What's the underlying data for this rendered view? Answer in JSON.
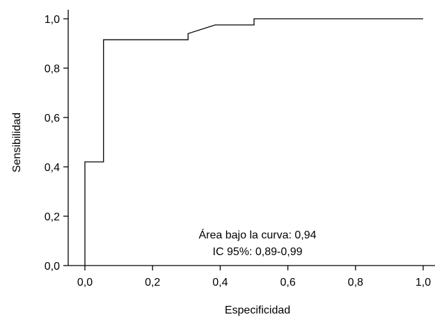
{
  "chart_data": {
    "type": "line",
    "xlabel": "Especificidad",
    "ylabel": "Sensibilidad",
    "xlim": [
      0,
      1
    ],
    "ylim": [
      0,
      1
    ],
    "x_ticks": [
      "0,0",
      "0,2",
      "0,4",
      "0,6",
      "0,8",
      "1,0"
    ],
    "y_ticks": [
      "0,0",
      "0,2",
      "0,4",
      "0,6",
      "0,8",
      "1,0"
    ],
    "grid": false,
    "series": [
      {
        "color": "#000000",
        "x": [
          0.0,
          0.0,
          0.055,
          0.055,
          0.305,
          0.305,
          0.385,
          0.5,
          0.5,
          1.0
        ],
        "y": [
          0.0,
          0.42,
          0.42,
          0.915,
          0.915,
          0.94,
          0.975,
          0.975,
          1.0,
          1.0
        ]
      }
    ],
    "annotations": [
      "Área bajo la curva: 0,94",
      "IC 95%: 0,89-0,99"
    ]
  }
}
